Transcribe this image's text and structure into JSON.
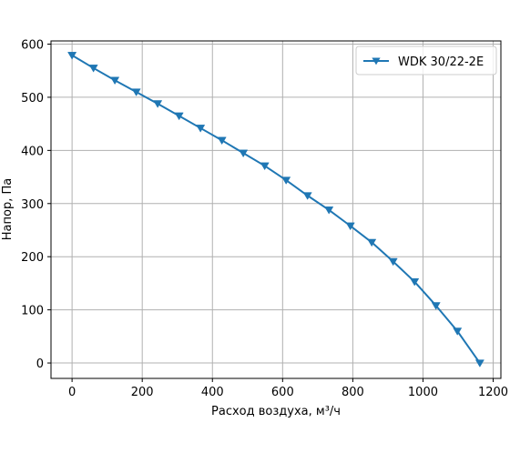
{
  "chart_data": {
    "type": "line",
    "title": "",
    "xlabel": "Расход воздуха, м³/ч",
    "ylabel": "Напор, Па",
    "xlim": [
      -60,
      1222
    ],
    "ylim": [
      -29,
      606
    ],
    "xticks": [
      0,
      200,
      400,
      600,
      800,
      1000,
      1200
    ],
    "yticks": [
      0,
      100,
      200,
      300,
      400,
      500,
      600
    ],
    "grid": true,
    "legend": {
      "position": "top-right"
    },
    "colors": {
      "series": "#1f77b4",
      "grid": "#b0b0b0",
      "axes": "#000000",
      "legend_border": "#cccccc"
    },
    "series": [
      {
        "name": "WDK 30/22-2E",
        "marker": "triangle-down",
        "x": [
          0,
          61,
          122,
          183,
          244,
          305,
          366,
          427,
          488,
          549,
          610,
          671,
          732,
          793,
          854,
          915,
          976,
          1037,
          1098,
          1162
        ],
        "y": [
          579,
          555,
          532,
          510,
          488,
          465,
          442,
          419,
          395,
          371,
          344,
          315,
          288,
          258,
          227,
          191,
          153,
          108,
          60,
          0
        ]
      }
    ]
  }
}
